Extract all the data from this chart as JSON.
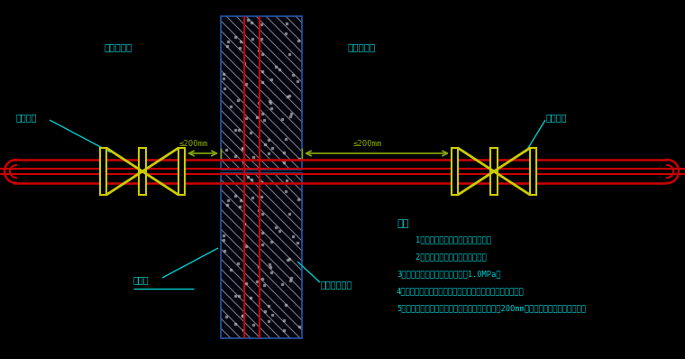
{
  "bg": "#000000",
  "pipe_c": "#cc0000",
  "valve_c": "#cccc00",
  "text_c": "#00cccc",
  "wall_edge_c": "#2255aa",
  "dim_c": "#88aa00",
  "red_c": "#cc0000",
  "note_title": "说明",
  "notes": [
    "    1、管道采用法兰、螺纹连接均可。",
    "    2、施工时防护管间套管应夹里。",
    "3、防护阀门的必备压力不应小于1.0MPa。",
    "4、防护阀门应采用闸芯为不锈钢般钢制原的闸阀或截止阀。",
    "5、人防围护结构的侧距离阀门的通道面不宜大于200mm。阀门应有明显的启闭标志。"
  ],
  "label_unit1": "防护单元Ⅰ",
  "label_unit2": "防护单元Ⅱ",
  "label_valve_l": "防护阀门",
  "label_valve_r": "防护阀门",
  "label_sleeve": "穿墙管",
  "label_sleeve2": "防护管间套管",
  "dim_l": "≤200mm",
  "dim_r": "≤200mm",
  "figsize": [
    7.6,
    3.98
  ],
  "dpi": 100
}
